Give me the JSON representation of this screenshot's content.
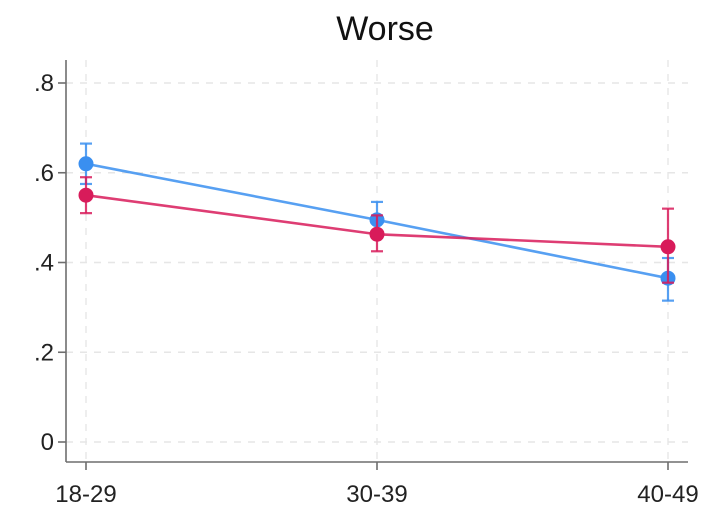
{
  "chart_data": {
    "type": "line",
    "title": "Worse",
    "xlabel": "",
    "ylabel": "",
    "categories": [
      "18-29",
      "30-39",
      "40-49"
    ],
    "ylim": [
      0,
      0.8
    ],
    "yticks": [
      0,
      0.2,
      0.4,
      0.6,
      0.8
    ],
    "ytick_labels": [
      "0",
      ".2",
      ".4",
      ".6",
      ".8"
    ],
    "grid": true,
    "series": [
      {
        "color": "#3a8ff0",
        "values": [
          0.62,
          0.495,
          0.365
        ],
        "ci_low": [
          0.575,
          0.455,
          0.315
        ],
        "ci_high": [
          0.665,
          0.535,
          0.41
        ]
      },
      {
        "color": "#d81b5a",
        "values": [
          0.55,
          0.463,
          0.435
        ],
        "ci_low": [
          0.51,
          0.425,
          0.355
        ],
        "ci_high": [
          0.59,
          0.505,
          0.52
        ]
      }
    ]
  }
}
